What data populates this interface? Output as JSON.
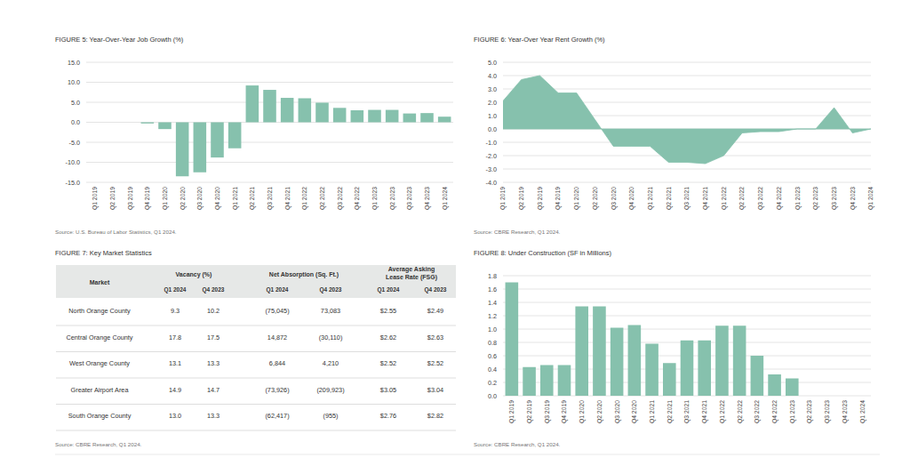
{
  "chart_data": [
    {
      "type": "bar",
      "title": "FIGURE 5: Year-Over-Year Job Growth (%)",
      "source": "Source: U.S. Bureau of Labor Statistics, Q1 2024.",
      "categories": [
        "Q1 2019",
        "Q2 2019",
        "Q3 2019",
        "Q4 2019",
        "Q1 2020",
        "Q2 2020",
        "Q3 2020",
        "Q4 2020",
        "Q1 2021",
        "Q2 2021",
        "Q3 2021",
        "Q4 2021",
        "Q1 2022",
        "Q2 2022",
        "Q3 2022",
        "Q4 2022",
        "Q1 2023",
        "Q2 2023",
        "Q3 2023",
        "Q4 2023",
        "Q1 2024"
      ],
      "values": [
        0,
        0,
        0,
        -0.3,
        -1.7,
        -13.5,
        -12.5,
        -8.8,
        -6.5,
        9.2,
        8.1,
        6.1,
        6.0,
        4.9,
        3.6,
        3.0,
        3.1,
        3.1,
        2.2,
        2.3,
        1.4
      ],
      "color": "#86c1ad",
      "ylim": [
        -15,
        15
      ],
      "yticks": [
        {
          "value": -15,
          "label": "-15.0"
        },
        {
          "value": -10,
          "label": "-10.0"
        },
        {
          "value": -5,
          "label": "-5.0"
        },
        {
          "value": 0,
          "label": "0.0"
        },
        {
          "value": 5,
          "label": "5.0"
        },
        {
          "value": 10,
          "label": "10.0"
        },
        {
          "value": 15,
          "label": "15.0"
        }
      ],
      "grid": true
    },
    {
      "type": "area",
      "title": "FIGURE 6: Year-Over Year Rent Growth (%)",
      "source": "Source: CBRE Research, Q1 2024.",
      "categories": [
        "Q1 2019",
        "Q2 2019",
        "Q3 2019",
        "Q4 2019",
        "Q1 2020",
        "Q2 2020",
        "Q3 2020",
        "Q4 2020",
        "Q1 2021",
        "Q2 2021",
        "Q3 2021",
        "Q4 2021",
        "Q1 2022",
        "Q2 2022",
        "Q3 2022",
        "Q4 2022",
        "Q1 2023",
        "Q2 2023",
        "Q3 2023",
        "Q4 2023",
        "Q1 2024"
      ],
      "values": [
        2.1,
        3.7,
        4.0,
        2.7,
        2.7,
        0.7,
        -1.3,
        -1.3,
        -1.3,
        -2.5,
        -2.5,
        -2.6,
        -2.0,
        -0.3,
        -0.2,
        -0.2,
        0.0,
        0.0,
        1.6,
        -0.3,
        0.0
      ],
      "color": "#86c1ad",
      "ylim": [
        -4,
        5
      ],
      "yticks": [
        {
          "value": -4,
          "label": "-4.0"
        },
        {
          "value": -3,
          "label": "-3.0"
        },
        {
          "value": -2,
          "label": "-2.0"
        },
        {
          "value": -1,
          "label": "-1.0"
        },
        {
          "value": 0,
          "label": "0.0"
        },
        {
          "value": 1,
          "label": "1.0"
        },
        {
          "value": 2,
          "label": "2.0"
        },
        {
          "value": 3,
          "label": "3.0"
        },
        {
          "value": 4,
          "label": "4.0"
        },
        {
          "value": 5,
          "label": "5.0"
        }
      ],
      "grid": true
    },
    {
      "type": "bar",
      "title": "FIGURE 8: Under Construction (SF in Millions)",
      "source": "Source: CBRE Research, Q1 2024.",
      "categories": [
        "Q1 2019",
        "Q2 2019",
        "Q3 2019",
        "Q4 2019",
        "Q1 2020",
        "Q2 2020",
        "Q3 2020",
        "Q4 2020",
        "Q1 2021",
        "Q2 2021",
        "Q3 2021",
        "Q4 2021",
        "Q1 2022",
        "Q2 2022",
        "Q3 2022",
        "Q4 2022",
        "Q1 2023",
        "Q2 2023",
        "Q3 2023",
        "Q4 2023",
        "Q1 2024"
      ],
      "values": [
        1.7,
        0.43,
        0.46,
        0.46,
        1.34,
        1.34,
        1.02,
        1.06,
        0.78,
        0.49,
        0.83,
        0.83,
        1.05,
        1.05,
        0.6,
        0.32,
        0.26,
        0,
        0,
        0,
        0
      ],
      "color": "#86c1ad",
      "ylim": [
        0,
        1.8
      ],
      "yticks": [
        {
          "value": 0,
          "label": "0.0"
        },
        {
          "value": 0.2,
          "label": "0.2"
        },
        {
          "value": 0.4,
          "label": "0.4"
        },
        {
          "value": 0.6,
          "label": "0.6"
        },
        {
          "value": 0.8,
          "label": "0.8"
        },
        {
          "value": 1,
          "label": "1.0"
        },
        {
          "value": 1.2,
          "label": "1.2"
        },
        {
          "value": 1.4,
          "label": "1.4"
        },
        {
          "value": 1.6,
          "label": "1.6"
        },
        {
          "value": 1.8,
          "label": "1.8"
        }
      ],
      "grid": true
    }
  ],
  "table": {
    "title": "FIGURE 7: Key Market Statistics",
    "source": "Source: CBRE Research, Q1 2024.",
    "header": {
      "market": "Market",
      "groups": [
        [
          "Vacancy (%)"
        ],
        [
          "Net Absorption (Sq. Ft.)"
        ],
        [
          "Average Asking",
          "Lease Rate (FSG)"
        ]
      ],
      "periods": [
        "Q1 2024",
        "Q4 2023"
      ]
    },
    "rows": [
      [
        "North Orange County",
        "9.3",
        "10.2",
        "(75,045)",
        "73,083",
        "$2.55",
        "$2.49"
      ],
      [
        "Central Orange County",
        "17.8",
        "17.5",
        "14,872",
        "(30,110)",
        "$2.62",
        "$2.63"
      ],
      [
        "West Orange County",
        "13.1",
        "13.3",
        "6,844",
        "4,210",
        "$2.52",
        "$2.52"
      ],
      [
        "Greater Airport Area",
        "14.9",
        "14.7",
        "(73,926)",
        "(209,923)",
        "$3.05",
        "$3.04"
      ],
      [
        "South Orange County",
        "13.0",
        "13.3",
        "(62,417)",
        "(955)",
        "$2.76",
        "$2.82"
      ]
    ]
  }
}
